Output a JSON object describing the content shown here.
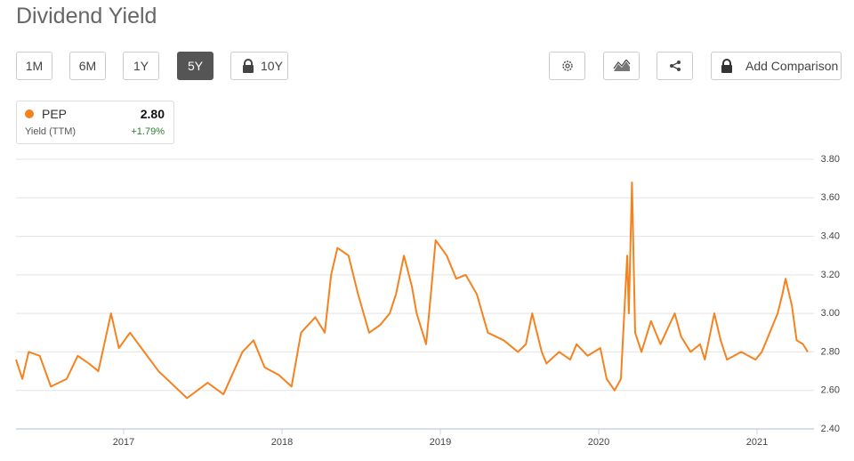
{
  "header": {
    "title": "Dividend Yield"
  },
  "toolbar": {
    "ranges": [
      "1M",
      "6M",
      "1Y",
      "5Y",
      "10Y"
    ],
    "comparison": "Add Comparison"
  },
  "legend": {
    "value": "2.80",
    "label": "Yield (TTM)",
    "change": "+1.79%"
  },
  "chart_data": {
    "type": "line",
    "x": [
      2016.32,
      2016.36,
      2016.4,
      2016.47,
      2016.54,
      2016.64,
      2016.71,
      2016.78,
      2016.84,
      2016.92,
      2016.97,
      2017.04,
      2017.22,
      2017.4,
      2017.53,
      2017.63,
      2017.75,
      2017.82,
      2017.89,
      2017.98,
      2018.06,
      2018.12,
      2018.21,
      2018.27,
      2018.31,
      2018.35,
      2018.42,
      2018.48,
      2018.55,
      2018.62,
      2018.68,
      2018.72,
      2018.77,
      2018.82,
      2018.85,
      2018.91,
      2018.94,
      2018.97,
      2019.04,
      2019.1,
      2019.16,
      2019.23,
      2019.3,
      2019.4,
      2019.49,
      2019.54,
      2019.58,
      2019.64,
      2019.67,
      2019.75,
      2019.82,
      2019.86,
      2019.93,
      2020.01,
      2020.05,
      2020.1,
      2020.14,
      2020.18,
      2020.19,
      2020.21,
      2020.23,
      2020.27,
      2020.33,
      2020.39,
      2020.48,
      2020.52,
      2020.58,
      2020.64,
      2020.67,
      2020.73,
      2020.77,
      2020.81,
      2020.9,
      2020.99,
      2021.03,
      2021.06,
      2021.13,
      2021.16,
      2021.18,
      2021.22,
      2021.25,
      2021.29,
      2021.32
    ],
    "series": [
      {
        "name": "PEP",
        "color": "#f5821f",
        "values": [
          2.76,
          2.66,
          2.8,
          2.78,
          2.62,
          2.66,
          2.78,
          2.74,
          2.7,
          3.0,
          2.82,
          2.9,
          2.7,
          2.56,
          2.64,
          2.58,
          2.8,
          2.86,
          2.72,
          2.68,
          2.62,
          2.9,
          2.98,
          2.9,
          3.2,
          3.34,
          3.3,
          3.1,
          2.9,
          2.94,
          3.0,
          3.1,
          3.3,
          3.14,
          3.0,
          2.84,
          3.1,
          3.38,
          3.3,
          3.18,
          3.2,
          3.1,
          2.9,
          2.86,
          2.8,
          2.84,
          3.0,
          2.8,
          2.74,
          2.8,
          2.76,
          2.84,
          2.78,
          2.82,
          2.66,
          2.6,
          2.66,
          3.3,
          3.0,
          3.68,
          2.9,
          2.8,
          2.96,
          2.84,
          3.0,
          2.88,
          2.8,
          2.84,
          2.76,
          3.0,
          2.86,
          2.76,
          2.8,
          2.76,
          2.8,
          2.86,
          3.0,
          3.1,
          3.18,
          3.04,
          2.86,
          2.84,
          2.8
        ]
      }
    ],
    "xlim": [
      2016.32,
      2021.32
    ],
    "xticks": [
      2017,
      2018,
      2019,
      2020,
      2021
    ],
    "ylim": [
      2.4,
      3.8
    ],
    "yticks": [
      {
        "value": 2.4,
        "label": "2.40"
      },
      {
        "value": 2.6,
        "label": "2.60"
      },
      {
        "value": 2.8,
        "label": "2.80"
      },
      {
        "value": 3.0,
        "label": "3.00"
      },
      {
        "value": 3.2,
        "label": "3.20"
      },
      {
        "value": 3.4,
        "label": "3.40"
      },
      {
        "value": 3.6,
        "label": "3.60"
      },
      {
        "value": 3.8,
        "label": "3.80"
      }
    ],
    "grid": true
  }
}
